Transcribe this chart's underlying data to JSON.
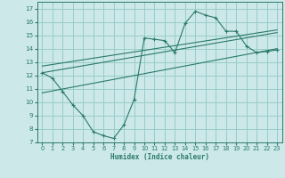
{
  "title": "",
  "xlabel": "Humidex (Indice chaleur)",
  "bg_color": "#cce8e8",
  "grid_color": "#99cccc",
  "line_color": "#2a7a6a",
  "xlim": [
    -0.5,
    23.5
  ],
  "ylim": [
    7,
    17.5
  ],
  "xticks": [
    0,
    1,
    2,
    3,
    4,
    5,
    6,
    7,
    8,
    9,
    10,
    11,
    12,
    13,
    14,
    15,
    16,
    17,
    18,
    19,
    20,
    21,
    22,
    23
  ],
  "yticks": [
    7,
    8,
    9,
    10,
    11,
    12,
    13,
    14,
    15,
    16,
    17
  ],
  "main_x": [
    0,
    1,
    2,
    3,
    4,
    5,
    6,
    7,
    8,
    9,
    10,
    11,
    12,
    13,
    14,
    15,
    16,
    17,
    18,
    19,
    20,
    21,
    22,
    23
  ],
  "main_y": [
    12.2,
    11.8,
    10.8,
    9.8,
    9.0,
    7.8,
    7.5,
    7.3,
    8.3,
    10.2,
    14.8,
    14.7,
    14.6,
    13.7,
    15.9,
    16.8,
    16.5,
    16.3,
    15.3,
    15.3,
    14.2,
    13.7,
    13.8,
    13.9
  ],
  "line1_x": [
    0,
    23
  ],
  "line1_y": [
    12.2,
    15.2
  ],
  "line2_x": [
    0,
    23
  ],
  "line2_y": [
    12.7,
    15.4
  ],
  "line3_x": [
    0,
    23
  ],
  "line3_y": [
    10.7,
    14.0
  ]
}
